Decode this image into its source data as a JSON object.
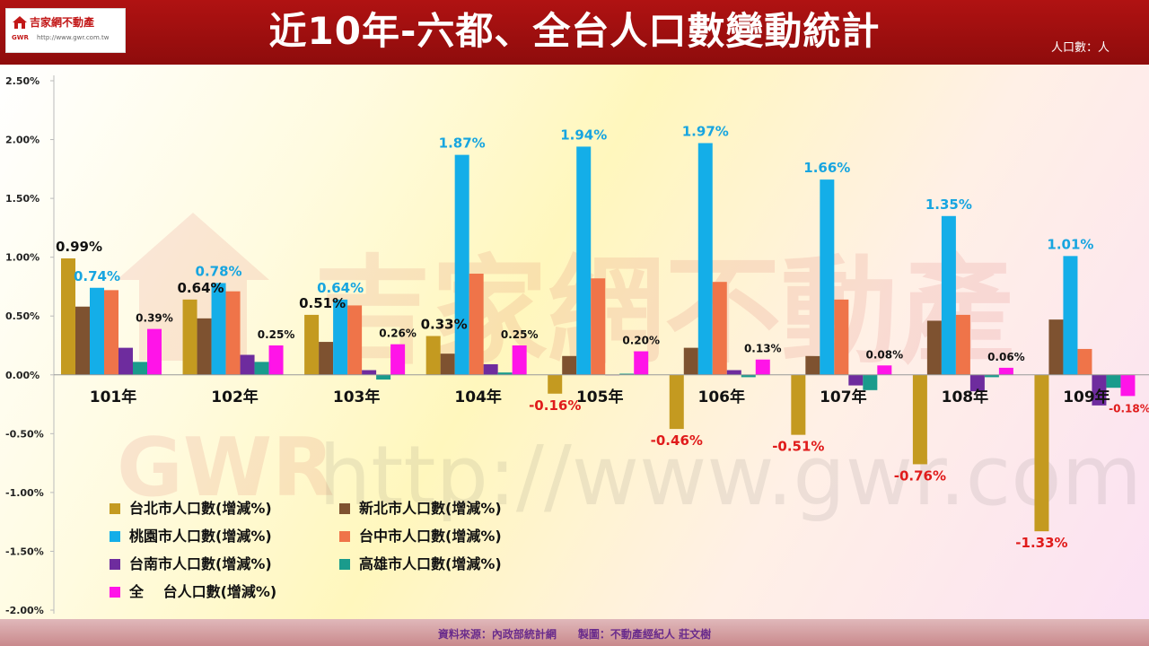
{
  "header": {
    "title": "近10年-六都、全台人口數變動統計",
    "unit": "人口數：人",
    "logo": {
      "name": "吉家網不動產",
      "url": "http://www.gwr.com.tw",
      "mark": "GWR"
    },
    "colors": {
      "background": "#a50f0f",
      "text": "#ffffff"
    }
  },
  "watermark": {
    "brand": "吉家網不動產",
    "mark": "GWR",
    "url": "http://www.gwr.com.tw"
  },
  "footer": {
    "source": "資料來源：內政部統計網　　製圖：不動產經紀人  莊文樹"
  },
  "chart_data": {
    "type": "bar",
    "title": "近10年-六都、全台人口數變動統計",
    "categories": [
      "101年",
      "102年",
      "103年",
      "104年",
      "105年",
      "106年",
      "107年",
      "108年",
      "109年"
    ],
    "ylim": [
      -2.0,
      2.5
    ],
    "yticks": [
      2.5,
      2.0,
      1.5,
      1.0,
      0.5,
      0.0,
      -0.5,
      -1.0,
      -1.5,
      -2.0
    ],
    "ytick_labels": [
      "2.50%",
      "2.00%",
      "1.50%",
      "1.00%",
      "0.50%",
      "0.00%",
      "-0.50%",
      "-1.00%",
      "-1.50%",
      "-2.00%"
    ],
    "grid": false,
    "legend_position": "bottom-left",
    "series": [
      {
        "name": "台北市人口數(增減%)",
        "color": "#c49a20",
        "values": [
          0.99,
          0.64,
          0.51,
          0.33,
          -0.16,
          -0.46,
          -0.51,
          -0.76,
          -1.33
        ],
        "labels": [
          "0.99%",
          "0.64%",
          "0.51%",
          "0.33%",
          "-0.16%",
          "-0.46%",
          "-0.51%",
          "-0.76%",
          "-1.33%"
        ],
        "label_colors": [
          "#111111",
          "#111111",
          "#111111",
          "#111111",
          "#e01b1b",
          "#e01b1b",
          "#e01b1b",
          "#e01b1b",
          "#e01b1b"
        ]
      },
      {
        "name": "新北市人口數(增減%)",
        "color": "#7e5230",
        "values": [
          0.58,
          0.48,
          0.28,
          0.18,
          0.16,
          0.23,
          0.16,
          0.46,
          0.47
        ]
      },
      {
        "name": "桃園市人口數(增減%)",
        "color": "#14aee8",
        "values": [
          0.74,
          0.78,
          0.64,
          1.87,
          1.94,
          1.97,
          1.66,
          1.35,
          1.01
        ],
        "labels": [
          "0.74%",
          "0.78%",
          "0.64%",
          "1.87%",
          "1.94%",
          "1.97%",
          "1.66%",
          "1.35%",
          "1.01%"
        ],
        "label_colors": [
          "#17a5e0",
          "#17a5e0",
          "#17a5e0",
          "#17a5e0",
          "#17a5e0",
          "#17a5e0",
          "#17a5e0",
          "#17a5e0",
          "#17a5e0"
        ]
      },
      {
        "name": "台中市人口數(增減%)",
        "color": "#ef7449",
        "values": [
          0.72,
          0.71,
          0.59,
          0.86,
          0.82,
          0.79,
          0.64,
          0.51,
          0.22
        ]
      },
      {
        "name": "台南市人口數(增減%)",
        "color": "#6e2c9e",
        "values": [
          0.23,
          0.17,
          0.04,
          0.09,
          0.0,
          0.04,
          -0.09,
          -0.14,
          -0.26
        ]
      },
      {
        "name": "高雄市人口數(增減%)",
        "color": "#1a9b8c",
        "values": [
          0.11,
          0.11,
          -0.04,
          0.02,
          0.01,
          -0.02,
          -0.13,
          -0.02,
          -0.11
        ]
      },
      {
        "name": "全　 台人口數(增減%)",
        "color": "#ff14e8",
        "values": [
          0.39,
          0.25,
          0.26,
          0.25,
          0.2,
          0.13,
          0.08,
          0.06,
          -0.18
        ],
        "labels": [
          "0.39%",
          "0.25%",
          "0.26%",
          "0.25%",
          "0.20%",
          "0.13%",
          "0.08%",
          "0.06%",
          "-0.18%"
        ],
        "label_colors": [
          "#111111",
          "#111111",
          "#111111",
          "#111111",
          "#111111",
          "#111111",
          "#111111",
          "#111111",
          "#e01b1b"
        ]
      }
    ]
  }
}
